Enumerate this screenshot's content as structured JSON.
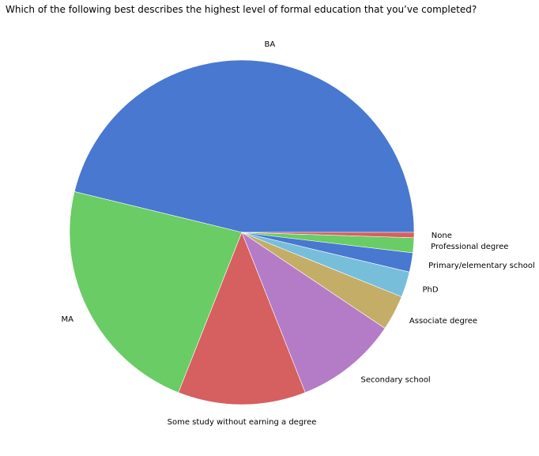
{
  "chart_data": {
    "type": "pie",
    "title": "Which of the following best describes the highest level of formal education that you’ve completed?",
    "categories": [
      "BA",
      "MA",
      "Some study without earning a degree",
      "Secondary school",
      "Associate degree",
      "PhD",
      "Primary/elementary school",
      "Professional degree",
      "None"
    ],
    "values": [
      46.2,
      22.8,
      12.0,
      9.6,
      3.3,
      2.4,
      1.8,
      1.4,
      0.5
    ],
    "colors": [
      "#4878d0",
      "#6acc64",
      "#d65f5f",
      "#b47cc7",
      "#c4ad66",
      "#77bedb",
      "#4878d0",
      "#6acc64",
      "#d65f5f"
    ],
    "start_angle": "counterclockwise from 3 o'clock"
  }
}
